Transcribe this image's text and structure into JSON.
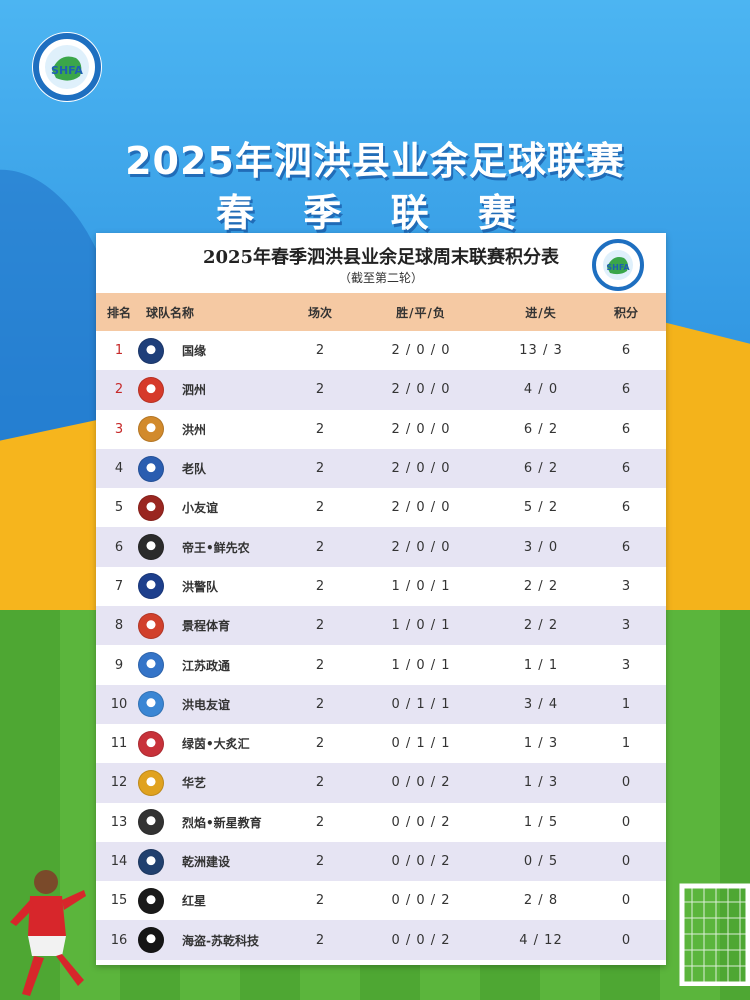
{
  "header": {
    "title": "2025年泗洪县业余足球联赛",
    "subtitle": "春 季 联 赛",
    "logo_text": "SHFA"
  },
  "table": {
    "title": "2025年春季泗洪县业余足球周末联赛积分表",
    "note": "（截至第二轮）",
    "columns": {
      "rank": "排名",
      "team": "球队名称",
      "played": "场次",
      "wdl": "胜/平/负",
      "goals": "进/失",
      "points": "积分"
    },
    "rows": [
      {
        "rank": "1",
        "team": "国缘",
        "played": "2",
        "wdl": "2 / 0 / 0",
        "goals": "13 / 3",
        "points": "6",
        "badge": "#1f3f7a"
      },
      {
        "rank": "2",
        "team": "泗州",
        "played": "2",
        "wdl": "2 / 0 / 0",
        "goals": "4 / 0",
        "points": "6",
        "badge": "#d63a2a"
      },
      {
        "rank": "3",
        "team": "洪州",
        "played": "2",
        "wdl": "2 / 0 / 0",
        "goals": "6 / 2",
        "points": "6",
        "badge": "#d28a2c"
      },
      {
        "rank": "4",
        "team": "老队",
        "played": "2",
        "wdl": "2 / 0 / 0",
        "goals": "6 / 2",
        "points": "6",
        "badge": "#2a5db0"
      },
      {
        "rank": "5",
        "team": "小友谊",
        "played": "2",
        "wdl": "2 / 0 / 0",
        "goals": "5 / 2",
        "points": "6",
        "badge": "#9a2620"
      },
      {
        "rank": "6",
        "team": "帝王•鲜先农",
        "played": "2",
        "wdl": "2 / 0 / 0",
        "goals": "3 / 0",
        "points": "6",
        "badge": "#2b2b2b"
      },
      {
        "rank": "7",
        "team": "洪警队",
        "played": "2",
        "wdl": "1 / 0 / 1",
        "goals": "2 / 2",
        "points": "3",
        "badge": "#1d3f8c"
      },
      {
        "rank": "8",
        "team": "景程体育",
        "played": "2",
        "wdl": "1 / 0 / 1",
        "goals": "2 / 2",
        "points": "3",
        "badge": "#d1402c"
      },
      {
        "rank": "9",
        "team": "江苏政通",
        "played": "2",
        "wdl": "1 / 0 / 1",
        "goals": "1 / 1",
        "points": "3",
        "badge": "#3474c8"
      },
      {
        "rank": "10",
        "team": "洪电友谊",
        "played": "2",
        "wdl": "0 / 1 / 1",
        "goals": "3 / 4",
        "points": "1",
        "badge": "#3a86d4"
      },
      {
        "rank": "11",
        "team": "绿茵•大炙汇",
        "played": "2",
        "wdl": "0 / 1 / 1",
        "goals": "1 / 3",
        "points": "1",
        "badge": "#c8323a"
      },
      {
        "rank": "12",
        "team": "华艺",
        "played": "2",
        "wdl": "0 / 0 / 2",
        "goals": "1 / 3",
        "points": "0",
        "badge": "#e0a21f"
      },
      {
        "rank": "13",
        "team": "烈焰•新星教育",
        "played": "2",
        "wdl": "0 / 0 / 2",
        "goals": "1 / 5",
        "points": "0",
        "badge": "#333333"
      },
      {
        "rank": "14",
        "team": "乾洲建设",
        "played": "2",
        "wdl": "0 / 0 / 2",
        "goals": "0 / 5",
        "points": "0",
        "badge": "#21406e"
      },
      {
        "rank": "15",
        "team": "红星",
        "played": "2",
        "wdl": "0 / 0 / 2",
        "goals": "2 / 8",
        "points": "0",
        "badge": "#1a1a1a"
      },
      {
        "rank": "16",
        "team": "海盗-苏乾科技",
        "played": "2",
        "wdl": "0 / 0 / 2",
        "goals": "4 / 12",
        "points": "0",
        "badge": "#151515"
      }
    ]
  },
  "colors": {
    "header_row": "#f5c9a3",
    "alt_row": "#e6e4f3",
    "top_rank": "#c62828"
  }
}
